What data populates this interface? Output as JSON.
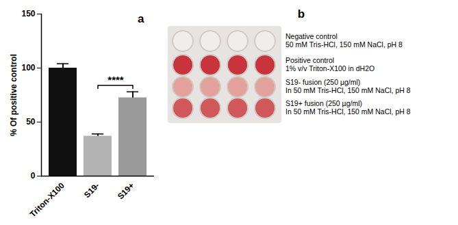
{
  "chart_data": {
    "type": "bar",
    "title": "a",
    "categories": [
      "Triton-X100",
      "S19-",
      "S19+"
    ],
    "values": [
      100,
      37,
      72.5
    ],
    "errors": [
      4,
      2,
      5.5
    ],
    "colors": [
      "#111111",
      "#b3b3b3",
      "#9a9a9a"
    ],
    "ylabel": "% Of positive control",
    "ylim": [
      0,
      150
    ],
    "yticks": [
      0,
      50,
      100,
      150
    ],
    "annotations": [
      {
        "text": "****",
        "from": "S19-",
        "to": "S19+"
      }
    ]
  },
  "plate": {
    "title": "b",
    "rows": [
      {
        "color": "#f1edea",
        "lines": [
          "Negative control",
          "50 mM Tris-HCl, 150 mM NaCl, pH 8"
        ]
      },
      {
        "color": "#c9343c",
        "lines": [
          "Positive control",
          "1% v/v Triton-X100 in dH2O"
        ]
      },
      {
        "color": "#e3a29c",
        "lines": [
          "S19- fusion (250 µg/ml)",
          "In 50 mM Tris-HCl, 150 mM NaCl, pH 8"
        ]
      },
      {
        "color": "#d0585a",
        "lines": [
          "S19+ fusion (250 µg/ml)",
          "In 50 mM Tris-HCl, 150 mM NaCl, pH 8"
        ]
      }
    ]
  }
}
